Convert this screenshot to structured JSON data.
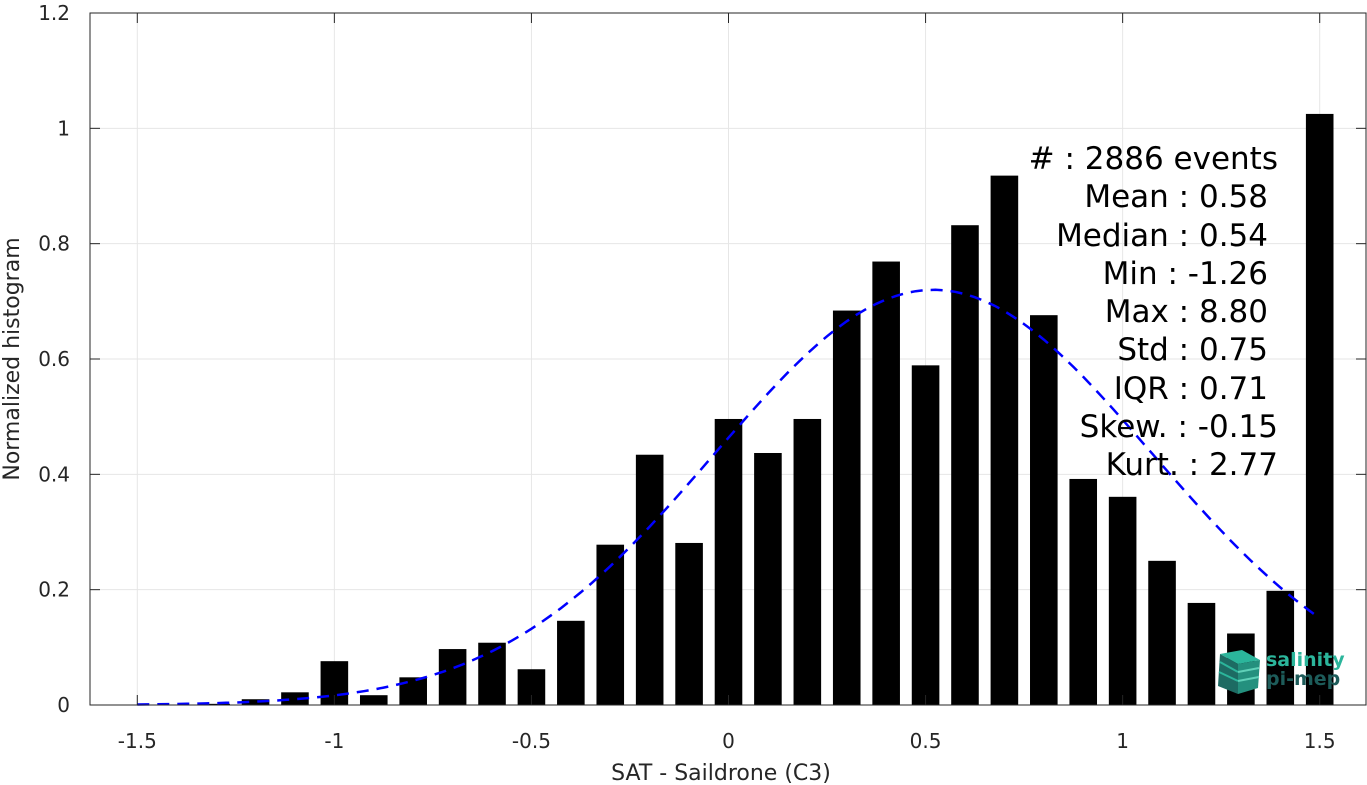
{
  "chart_data": {
    "type": "bar",
    "xlabel": "SAT - Saildrone (C3)",
    "ylabel": "Normalized histogram",
    "xlim": [
      -1.62,
      1.62
    ],
    "ylim": [
      0,
      1.2
    ],
    "xticks": [
      "-1.5",
      "-1",
      "-0.5",
      "0",
      "0.5",
      "1",
      "1.5"
    ],
    "xtick_values": [
      -1.5,
      -1,
      -0.5,
      0,
      0.5,
      1,
      1.5
    ],
    "yticks": [
      "0",
      "0.2",
      "0.4",
      "0.6",
      "0.8",
      "1",
      "1.2"
    ],
    "ytick_values": [
      0,
      0.2,
      0.4,
      0.6,
      0.8,
      1,
      1.2
    ],
    "grid": true,
    "bar_color": "#000000",
    "bins": [
      -1.5,
      -1.4,
      -1.3,
      -1.2,
      -1.1,
      -1.0,
      -0.9,
      -0.8,
      -0.7,
      -0.6,
      -0.5,
      -0.4,
      -0.3,
      -0.2,
      -0.1,
      0.0,
      0.1,
      0.2,
      0.3,
      0.4,
      0.5,
      0.6,
      0.7,
      0.8,
      0.9,
      1.0,
      1.1,
      1.2,
      1.3,
      1.4,
      1.5
    ],
    "values": [
      0.0,
      0.0,
      0.002,
      0.01,
      0.022,
      0.076,
      0.017,
      0.048,
      0.097,
      0.108,
      0.062,
      0.146,
      0.278,
      0.434,
      0.281,
      0.496,
      0.437,
      0.496,
      0.684,
      0.769,
      0.589,
      0.832,
      0.918,
      0.676,
      0.392,
      0.361,
      0.25,
      0.177,
      0.124,
      0.198,
      1.025
    ],
    "fit_curve": {
      "style": "dashed",
      "color": "#0000ff",
      "mean": 0.52,
      "std": 0.554,
      "peak": 0.72,
      "x_range": [
        -1.5,
        1.5
      ]
    }
  },
  "stats": [
    "#  : 2886 events",
    "Mean : 0.58",
    "Median : 0.54",
    "Min : -1.26",
    "Max : 8.80",
    "Std : 0.75",
    "IQR : 0.71",
    "Skew. : -0.15",
    "Kurt. : 2.77"
  ],
  "logo": {
    "line1": "salinity",
    "line2": "pi-mep",
    "colors": {
      "light": "#2bb59b",
      "dark": "#1d5c5a"
    }
  }
}
